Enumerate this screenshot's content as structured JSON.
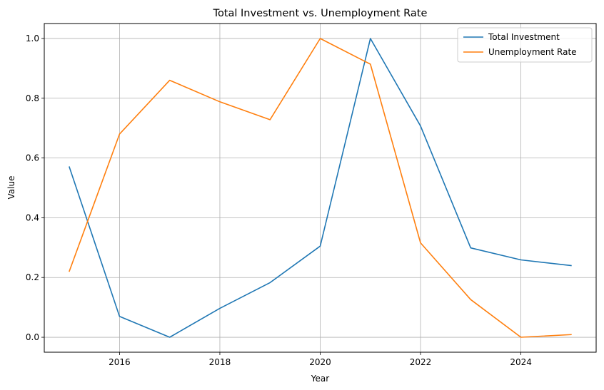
{
  "chart_data": {
    "type": "line",
    "title": "Total Investment vs. Unemployment Rate",
    "xlabel": "Year",
    "ylabel": "Value",
    "x": [
      2015,
      2016,
      2017,
      2018,
      2019,
      2020,
      2021,
      2022,
      2023,
      2024,
      2025
    ],
    "xlim": [
      2014.5,
      2025.5
    ],
    "ylim": [
      -0.05,
      1.05
    ],
    "xticks": [
      2016,
      2018,
      2020,
      2022,
      2024
    ],
    "yticks": [
      0.0,
      0.2,
      0.4,
      0.6,
      0.8,
      1.0
    ],
    "ytick_labels": [
      "0.0",
      "0.2",
      "0.4",
      "0.6",
      "0.8",
      "1.0"
    ],
    "grid": true,
    "legend_position": "top-right",
    "series": [
      {
        "name": "Total Investment",
        "color": "#1f77b4",
        "values": [
          0.57,
          0.07,
          0.0,
          0.097,
          0.183,
          0.305,
          1.0,
          0.707,
          0.299,
          0.259,
          0.24
        ]
      },
      {
        "name": "Unemployment Rate",
        "color": "#ff7f0e",
        "values": [
          0.221,
          0.68,
          0.86,
          0.788,
          0.728,
          1.0,
          0.914,
          0.316,
          0.126,
          0.0,
          0.009
        ]
      }
    ]
  }
}
